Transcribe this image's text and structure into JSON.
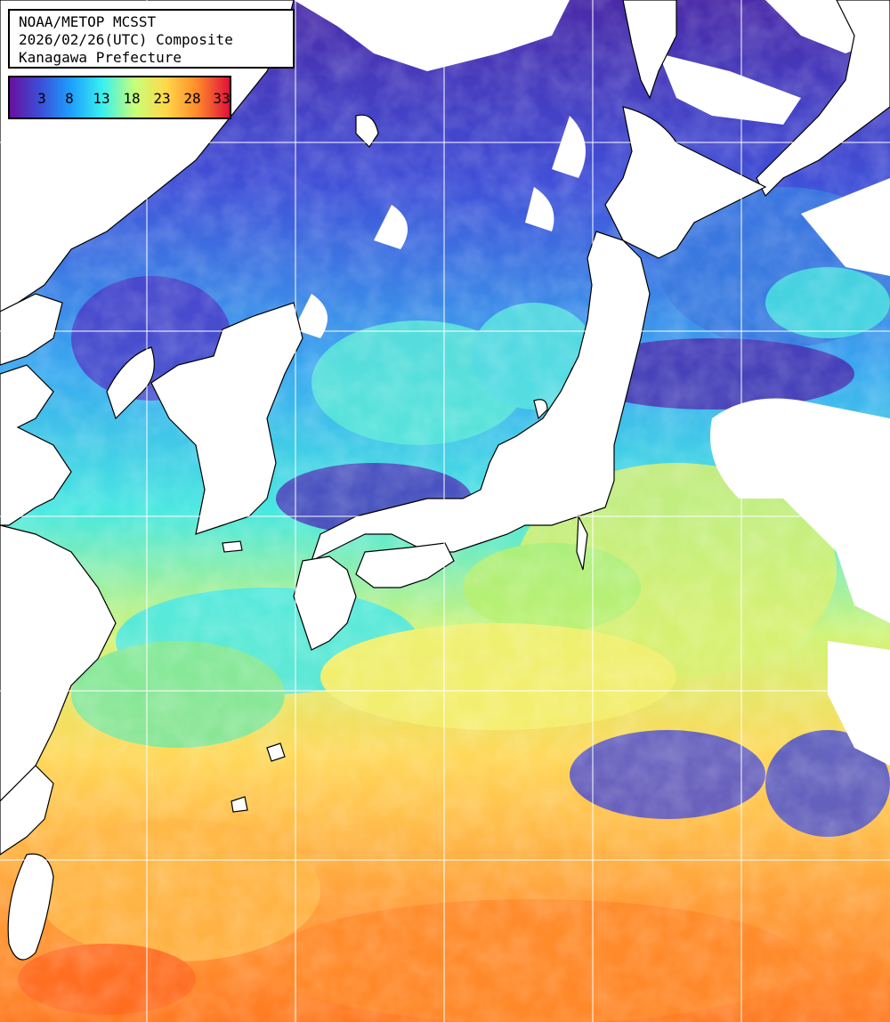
{
  "title": {
    "line1": "NOAA/METOP MCSST",
    "line2": "2026/02/26(UTC) Composite",
    "line3": "Kanagawa Prefecture"
  },
  "legend": {
    "labels": [
      "3",
      "8",
      "13",
      "18",
      "23",
      "28",
      "33"
    ],
    "colors": [
      "#6a0fa0",
      "#3b4fd8",
      "#1ea0ff",
      "#38f0f0",
      "#c8ff78",
      "#ffd84a",
      "#ff8c2a",
      "#e0103a"
    ]
  },
  "map_colors": {
    "land": "#ffffff",
    "coast": "#000000",
    "grid": "#ffffff",
    "cold": "#5a2fb0",
    "cool": "#2b7ae8",
    "mid": "#3ee0e8",
    "mild": "#c8f070",
    "warm": "#ffd25a",
    "hot": "#ff9a32",
    "very_hot": "#ff6a1e"
  }
}
